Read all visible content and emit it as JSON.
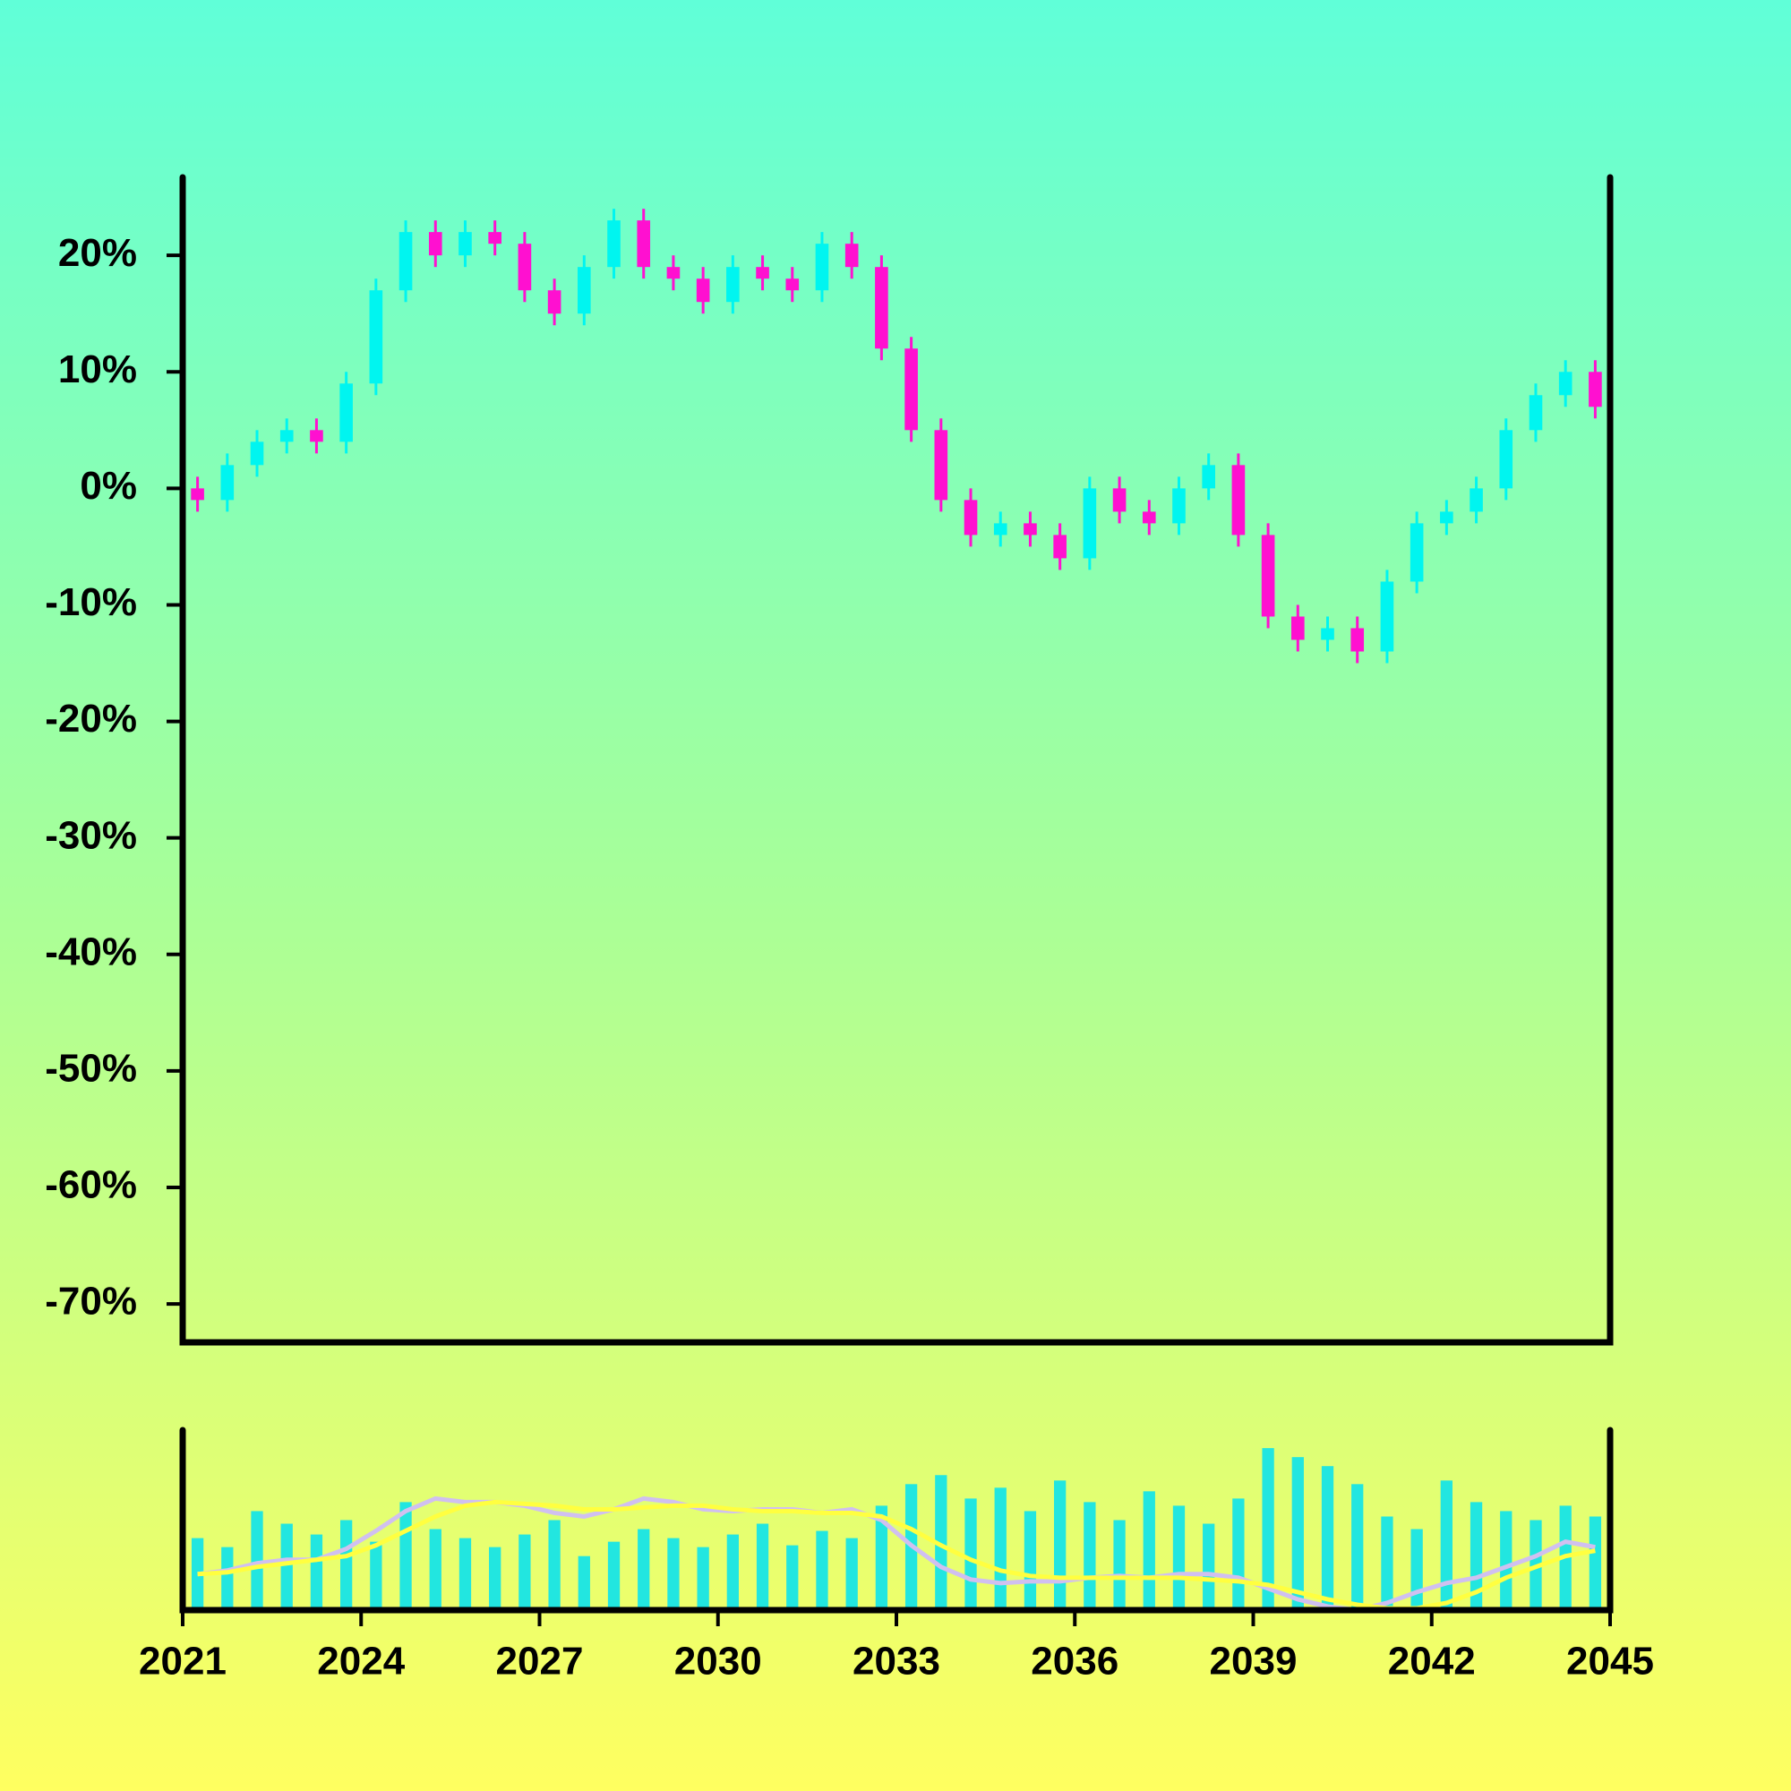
{
  "chart_data": {
    "type": "candlestick",
    "x": [
      2021.25,
      2021.75,
      2022.25,
      2022.75,
      2023.25,
      2023.75,
      2024.25,
      2024.75,
      2025.25,
      2025.75,
      2026.25,
      2026.75,
      2027.25,
      2027.75,
      2028.25,
      2028.75,
      2029.25,
      2029.75,
      2030.25,
      2030.75,
      2031.25,
      2031.75,
      2032.25,
      2032.75,
      2033.25,
      2033.75,
      2034.25,
      2034.75,
      2035.25,
      2035.75,
      2036.25,
      2036.75,
      2037.25,
      2037.75,
      2038.25,
      2038.75,
      2039.25,
      2039.75,
      2040.25,
      2040.75,
      2041.25,
      2041.75,
      2042.25,
      2042.75,
      2043.25,
      2043.75,
      2044.25,
      2044.75
    ],
    "open": [
      0,
      -1,
      2,
      4,
      5,
      4,
      9,
      17,
      22,
      20,
      22,
      21,
      17,
      15,
      19,
      23,
      19,
      18,
      16,
      19,
      18,
      17,
      21,
      19,
      12,
      5,
      -1,
      -4,
      -3,
      -4,
      -6,
      0,
      -2,
      -3,
      0,
      2,
      -4,
      -11,
      -13,
      -12,
      -14,
      -8,
      -3,
      -2,
      0,
      5,
      8,
      10
    ],
    "high": [
      1,
      3,
      5,
      6,
      6,
      10,
      18,
      23,
      23,
      23,
      23,
      22,
      18,
      20,
      24,
      24,
      20,
      19,
      20,
      20,
      19,
      22,
      22,
      20,
      13,
      6,
      0,
      -2,
      -2,
      -3,
      1,
      1,
      -1,
      1,
      3,
      3,
      -3,
      -10,
      -11,
      -11,
      -7,
      -2,
      -1,
      1,
      6,
      9,
      11,
      11
    ],
    "low": [
      -2,
      -2,
      1,
      3,
      3,
      3,
      8,
      16,
      19,
      19,
      20,
      16,
      14,
      14,
      18,
      18,
      17,
      15,
      15,
      17,
      16,
      16,
      18,
      11,
      4,
      -2,
      -5,
      -5,
      -5,
      -7,
      -7,
      -3,
      -4,
      -4,
      -1,
      -5,
      -12,
      -14,
      -14,
      -15,
      -15,
      -9,
      -4,
      -3,
      -1,
      4,
      7,
      6
    ],
    "close": [
      -1,
      2,
      4,
      5,
      4,
      9,
      17,
      22,
      20,
      22,
      21,
      17,
      15,
      19,
      23,
      19,
      18,
      16,
      19,
      18,
      17,
      21,
      19,
      12,
      5,
      -1,
      -4,
      -3,
      -4,
      -6,
      0,
      -2,
      -3,
      0,
      2,
      -4,
      -11,
      -13,
      -12,
      -14,
      -8,
      -3,
      -2,
      0,
      5,
      8,
      10,
      7
    ],
    "up_color": "#00f5f0",
    "down_color": "#ff10d0",
    "xlim": [
      2021,
      2045
    ],
    "xticks": [
      2021,
      2024,
      2027,
      2030,
      2033,
      2036,
      2039,
      2042,
      2045
    ],
    "ylim": [
      -73.3,
      26.7
    ],
    "yticks": [
      {
        "value": 20,
        "label": "20%"
      },
      {
        "value": 10,
        "label": "10%"
      },
      {
        "value": 0,
        "label": "0%"
      },
      {
        "value": -10,
        "label": "-10%"
      },
      {
        "value": -20,
        "label": "-20%"
      },
      {
        "value": -30,
        "label": "-30%"
      },
      {
        "value": -40,
        "label": "-40%"
      },
      {
        "value": -50,
        "label": "-50%"
      },
      {
        "value": -60,
        "label": "-60%"
      },
      {
        "value": -70,
        "label": "-70%"
      }
    ],
    "volume": {
      "color": "#22e6e0",
      "ylim": [
        0,
        100
      ],
      "values": [
        40,
        35,
        55,
        48,
        42,
        50,
        38,
        60,
        45,
        40,
        35,
        42,
        50,
        30,
        38,
        45,
        40,
        35,
        42,
        48,
        36,
        44,
        40,
        58,
        70,
        75,
        62,
        68,
        55,
        72,
        60,
        50,
        66,
        58,
        48,
        62,
        90,
        85,
        80,
        70,
        52,
        45,
        72,
        60,
        55,
        50,
        58,
        52
      ]
    },
    "averages": [
      {
        "color": "#d0c0f0",
        "values": [
          20,
          22,
          26,
          28,
          28,
          34,
          44,
          55,
          62,
          60,
          60,
          58,
          54,
          52,
          56,
          62,
          60,
          56,
          55,
          56,
          56,
          54,
          56,
          50,
          36,
          24,
          17,
          15,
          16,
          16,
          18,
          19,
          18,
          20,
          20,
          18,
          12,
          6,
          2,
          0,
          4,
          10,
          15,
          18,
          24,
          30,
          38,
          35
        ]
      },
      {
        "color": "#ffff40",
        "values": [
          20,
          21,
          24,
          26,
          28,
          30,
          36,
          44,
          52,
          58,
          60,
          59,
          58,
          56,
          56,
          57,
          58,
          58,
          56,
          55,
          55,
          54,
          54,
          52,
          45,
          36,
          28,
          22,
          19,
          18,
          18,
          18,
          18,
          18,
          17,
          16,
          14,
          10,
          6,
          3,
          1,
          1,
          4,
          10,
          18,
          24,
          30,
          33
        ]
      }
    ]
  }
}
